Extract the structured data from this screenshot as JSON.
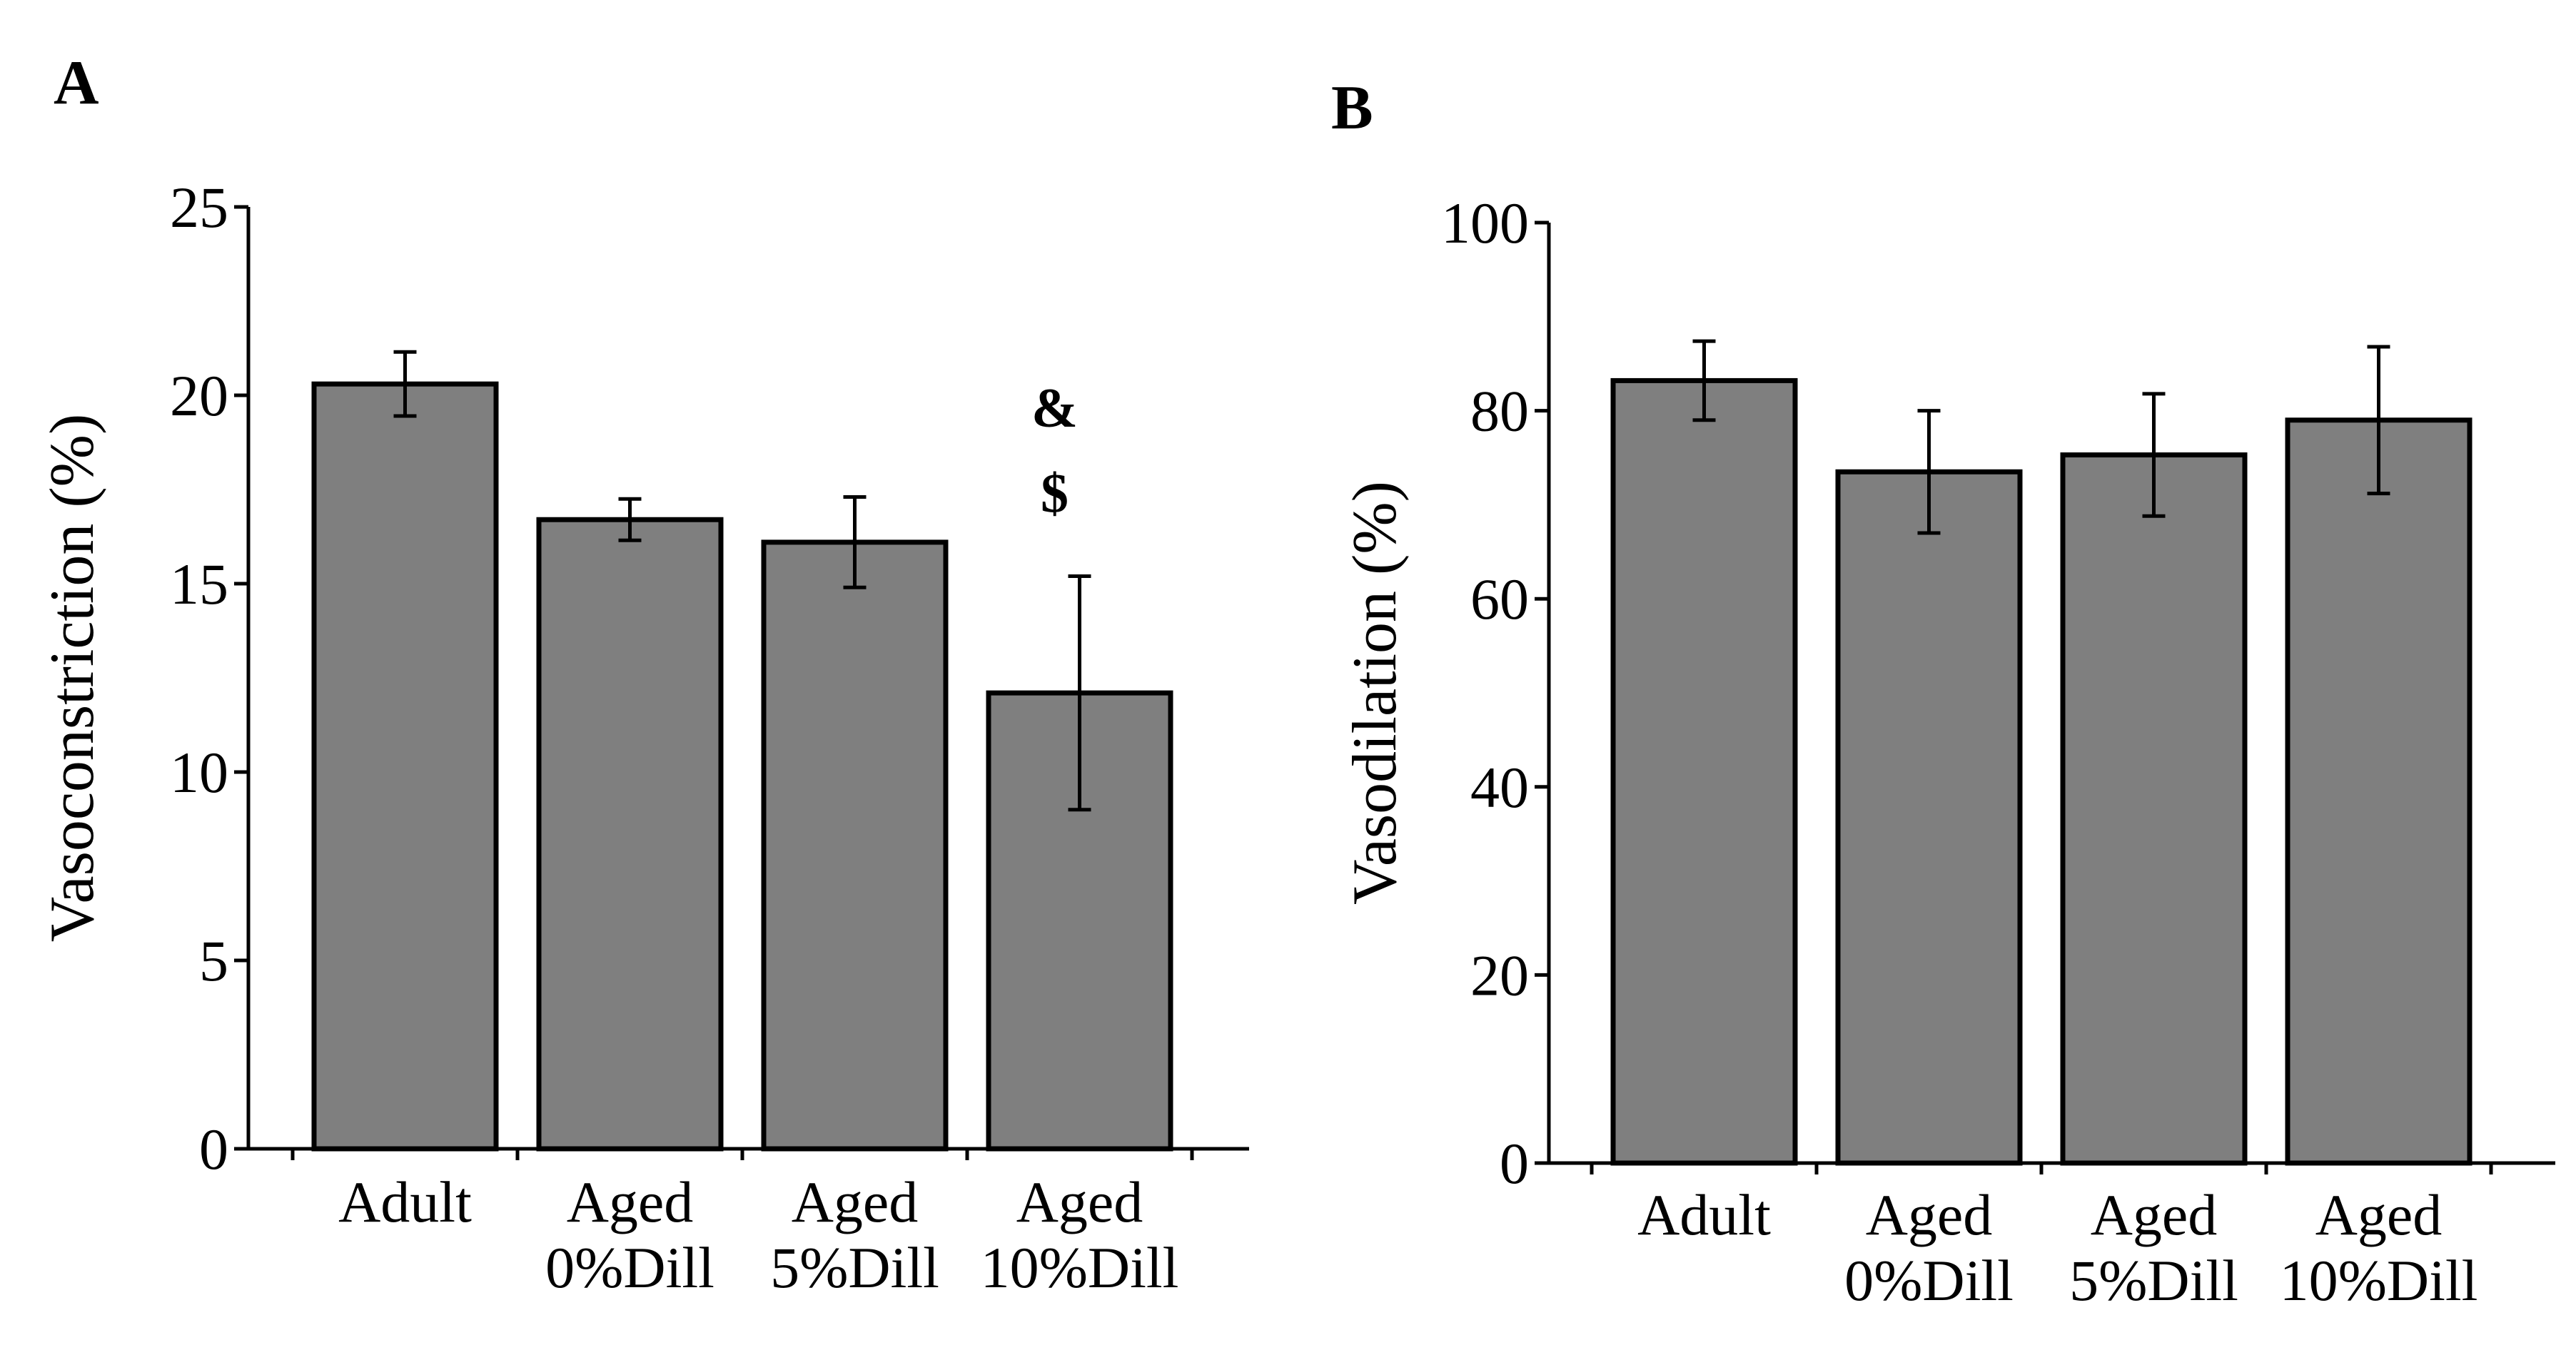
{
  "chart_data": [
    {
      "panel_label": "A",
      "type": "bar",
      "categories": [
        [
          "Adult"
        ],
        [
          "Aged",
          "0%Dill"
        ],
        [
          "Aged",
          "5%Dill"
        ],
        [
          "Aged",
          "10%Dill"
        ]
      ],
      "values": [
        20.3,
        16.7,
        16.1,
        12.1
      ],
      "errors": [
        0.85,
        0.55,
        1.2,
        3.1
      ],
      "ylabel": "Vasoconstriction (%)",
      "ylim": [
        0,
        25
      ],
      "yticks": [
        0,
        5,
        10,
        15,
        20,
        25
      ],
      "annotations": [
        {
          "category_index": 3,
          "lines": [
            "&",
            "$"
          ]
        }
      ],
      "bar_color": "#7f7f7f"
    },
    {
      "panel_label": "B",
      "type": "bar",
      "categories": [
        [
          "Adult"
        ],
        [
          "Aged",
          "0%Dill"
        ],
        [
          "Aged",
          "5%Dill"
        ],
        [
          "Aged",
          "10%Dill"
        ]
      ],
      "values": [
        83.2,
        73.5,
        75.3,
        79.0
      ],
      "errors": [
        4.2,
        6.5,
        6.5,
        7.8
      ],
      "ylabel": "Vasodilation (%)",
      "ylim": [
        0,
        100
      ],
      "yticks": [
        0,
        20,
        40,
        60,
        80,
        100
      ],
      "annotations": [],
      "bar_color": "#7f7f7f"
    }
  ]
}
